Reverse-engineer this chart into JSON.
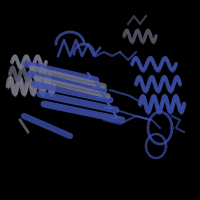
{
  "background_color": "#000000",
  "fig_width": 2.0,
  "fig_height": 2.0,
  "dpi": 100,
  "blue_color": "#3d4fa8",
  "gray_color": "#7a7a8c",
  "dark_gray": "#555566",
  "light_blue": "#5566cc"
}
